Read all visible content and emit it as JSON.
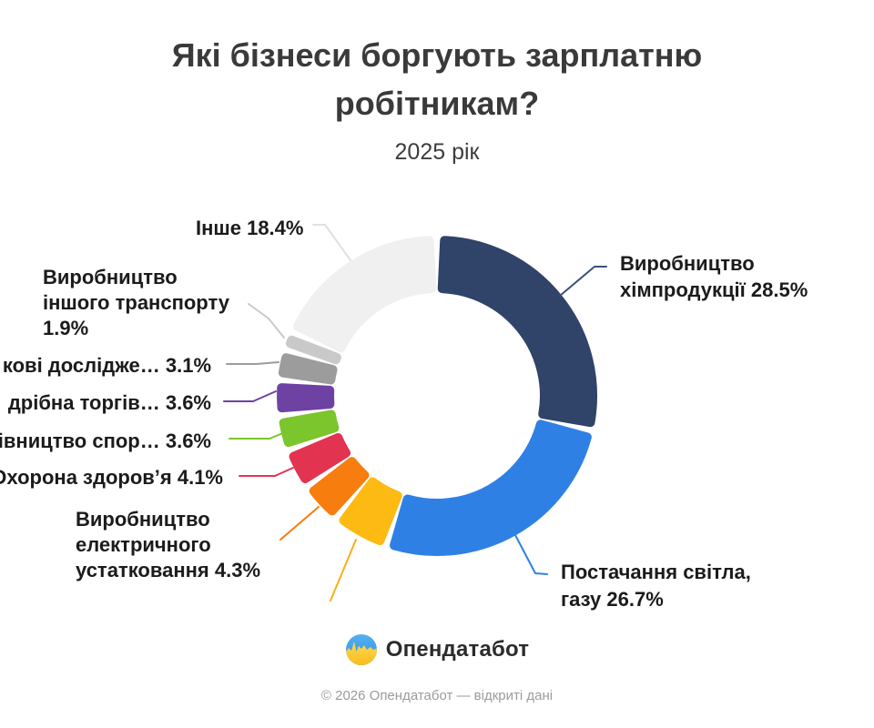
{
  "header": {
    "title_line1": "Які бізнеси боргують зарплатню",
    "title_line2": "робітникам?",
    "subtitle": "2025 рік"
  },
  "chart_data": {
    "type": "pie",
    "style": "donut",
    "title": "Які бізнеси боргують зарплатню робітникам?",
    "subtitle": "2025 рік",
    "unit": "%",
    "clockwise_from_top": true,
    "segments": [
      {
        "label": "Виробництво хімпродукції",
        "value": 28.5,
        "color": "#304368",
        "line_color": "#3d5078",
        "label_visible": true
      },
      {
        "label": "Постачання світла, газу",
        "value": 26.7,
        "color": "#2f80e5",
        "line_color": "#2f80e5",
        "label_visible": true
      },
      {
        "label": "",
        "value": 5.8,
        "color": "#fcba12",
        "line_color": "#fbae17",
        "label_visible": false
      },
      {
        "label": "Виробництво електричного устатковання",
        "value": 4.3,
        "color": "#f67d0e",
        "line_color": "#f67d0e",
        "label_visible": true
      },
      {
        "label": "Охорона здоров’я",
        "value": 4.1,
        "color": "#e23450",
        "line_color": "#e23450",
        "label_visible": true
      },
      {
        "label": "івництво спор…",
        "value": 3.6,
        "color": "#7bc52d",
        "line_color": "#7bc52d",
        "label_visible": true
      },
      {
        "label": "дрібна торгів…",
        "value": 3.6,
        "color": "#6e42a3",
        "line_color": "#6e42a3",
        "label_visible": true
      },
      {
        "label": "кові дослідже…",
        "value": 3.1,
        "color": "#9c9c9c",
        "line_color": "#9c9c9c",
        "label_visible": true
      },
      {
        "label": "Виробництво іншого транспорту",
        "value": 1.9,
        "color": "#c9c9c9",
        "line_color": "#c9c9c9",
        "label_visible": true
      },
      {
        "label": "Інше",
        "value": 18.4,
        "color": "#f0f0f0",
        "line_color": "#e0e0e0",
        "label_visible": true
      }
    ]
  },
  "callouts": {
    "other": {
      "text": "Інше 18.4%"
    },
    "transport": {
      "line1": "Виробництво",
      "line2": "іншого транспорту",
      "line3": "1.9%"
    },
    "research": {
      "text": "кові дослідже… 3.1%"
    },
    "retail": {
      "text": "дрібна торгів… 3.6%"
    },
    "construction": {
      "text": "івництво спор… 3.6%"
    },
    "health": {
      "text": "Охорона здоров’я 4.1%"
    },
    "electric": {
      "line1": "Виробництво",
      "line2": "електричного",
      "line3": "устатковання 4.3%"
    },
    "chemicals": {
      "line1": "Виробництво",
      "line2": "хімпродукції 28.5%"
    },
    "energy": {
      "line1": "Постачання світла,",
      "line2": "газу 26.7%"
    }
  },
  "footer": {
    "brand": "Опендатабот",
    "copyright": "© 2026 Опендатабот — відкриті дані"
  }
}
